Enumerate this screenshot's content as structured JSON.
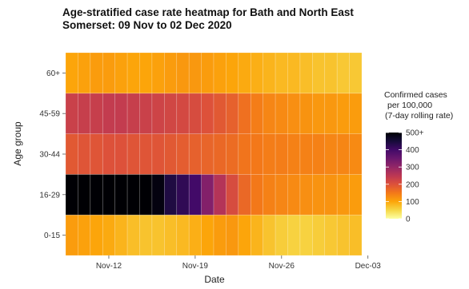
{
  "chart_data": {
    "type": "heatmap",
    "title_lines": [
      "Age-stratified case rate heatmap for Bath and North East",
      "Somerset: 09 Nov to 02 Dec 2020"
    ],
    "xlabel": "Date",
    "ylabel": "Age group",
    "x_dates": [
      "2020-11-09",
      "2020-11-10",
      "2020-11-11",
      "2020-11-12",
      "2020-11-13",
      "2020-11-14",
      "2020-11-15",
      "2020-11-16",
      "2020-11-17",
      "2020-11-18",
      "2020-11-19",
      "2020-11-20",
      "2020-11-21",
      "2020-11-22",
      "2020-11-23",
      "2020-11-24",
      "2020-11-25",
      "2020-11-26",
      "2020-11-27",
      "2020-11-28",
      "2020-11-29",
      "2020-11-30",
      "2020-12-01",
      "2020-12-02"
    ],
    "x_ticks": [
      {
        "date": "2020-11-12",
        "label": "Nov-12"
      },
      {
        "date": "2020-11-19",
        "label": "Nov-19"
      },
      {
        "date": "2020-11-26",
        "label": "Nov-26"
      },
      {
        "date": "2020-12-03",
        "label": "Dec-03"
      }
    ],
    "y_categories": [
      "0-15",
      "16-29",
      "30-44",
      "45-59",
      "60+"
    ],
    "values": {
      "60+": [
        100,
        105,
        110,
        110,
        105,
        100,
        100,
        105,
        110,
        115,
        115,
        110,
        105,
        100,
        95,
        90,
        85,
        80,
        80,
        75,
        70,
        70,
        65,
        65
      ],
      "45-59": [
        230,
        235,
        235,
        240,
        240,
        235,
        230,
        225,
        220,
        215,
        210,
        200,
        190,
        180,
        160,
        145,
        135,
        130,
        125,
        120,
        115,
        115,
        110,
        110
      ],
      "30-44": [
        190,
        195,
        195,
        200,
        200,
        195,
        195,
        195,
        190,
        185,
        180,
        175,
        170,
        165,
        155,
        150,
        145,
        145,
        140,
        140,
        140,
        135,
        135,
        130
      ],
      "16-29": [
        520,
        530,
        540,
        545,
        540,
        530,
        520,
        490,
        440,
        420,
        400,
        320,
        260,
        210,
        170,
        150,
        140,
        135,
        130,
        125,
        120,
        120,
        115,
        110
      ],
      "0-15": [
        110,
        105,
        100,
        95,
        85,
        75,
        70,
        70,
        75,
        80,
        90,
        100,
        110,
        115,
        100,
        85,
        70,
        60,
        55,
        55,
        60,
        65,
        70,
        75
      ]
    },
    "legend": {
      "title_lines": [
        "Confirmed cases",
        "per 100,000",
        "(7-day rolling rate)"
      ],
      "min": 0,
      "max": 500,
      "ticks": [
        0,
        100,
        200,
        300,
        400,
        500
      ],
      "tick_labels": [
        "0",
        "100",
        "200",
        "300",
        "400",
        "500+"
      ],
      "position": "right"
    },
    "colorscale": [
      "#fcffa4",
      "#f6d746",
      "#fca50a",
      "#f37819",
      "#dd513a",
      "#bc3754",
      "#932667",
      "#6a176e",
      "#420a68",
      "#160b39",
      "#000004"
    ],
    "grid": true
  }
}
